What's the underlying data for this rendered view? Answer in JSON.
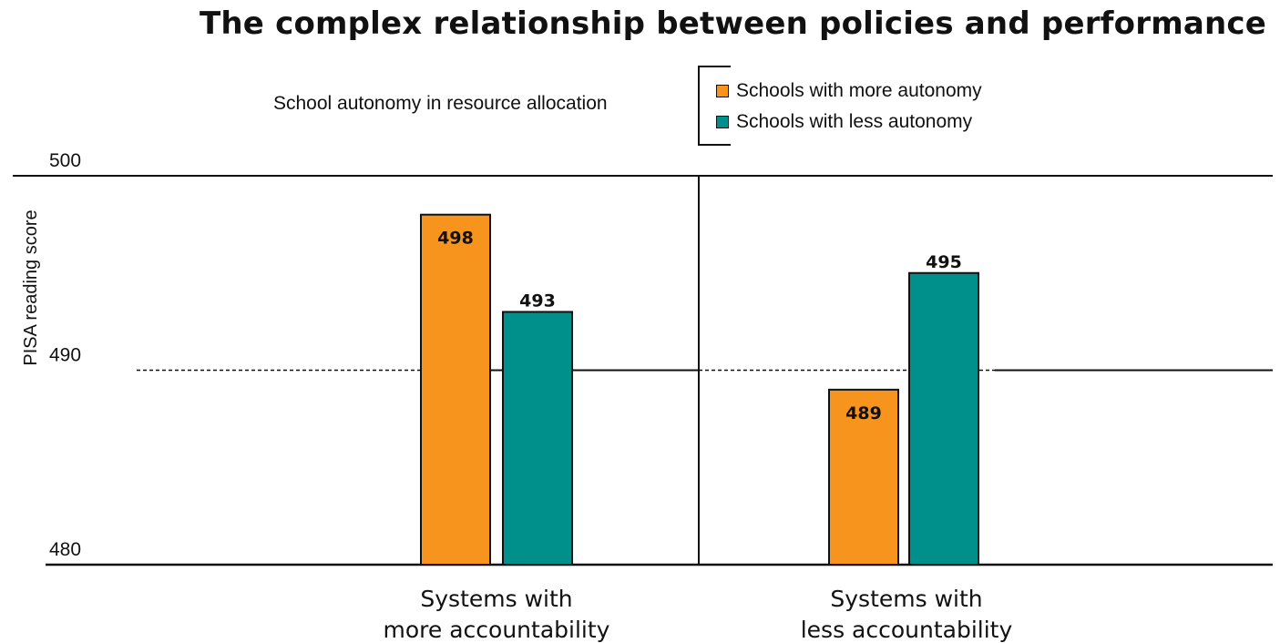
{
  "chart_data": {
    "type": "bar",
    "title": "The complex relationship between policies and performance",
    "legend_title": "School autonomy in resource allocation",
    "legend_placement": "top-right",
    "categories": [
      "Systems with\nmore accountability",
      "Systems with\nless accountability"
    ],
    "series": [
      {
        "name": "Schools with more autonomy",
        "color": "#f7941d",
        "values": [
          498,
          489
        ]
      },
      {
        "name": "Schools with less autonomy",
        "color": "#00908c",
        "values": [
          493,
          495
        ]
      }
    ],
    "ylabel": "PISA reading score",
    "ylim": [
      480,
      500
    ],
    "yticks": [
      480,
      490,
      500
    ],
    "data_labels": [
      [
        "498",
        "489"
      ],
      [
        "493",
        "495"
      ]
    ]
  }
}
